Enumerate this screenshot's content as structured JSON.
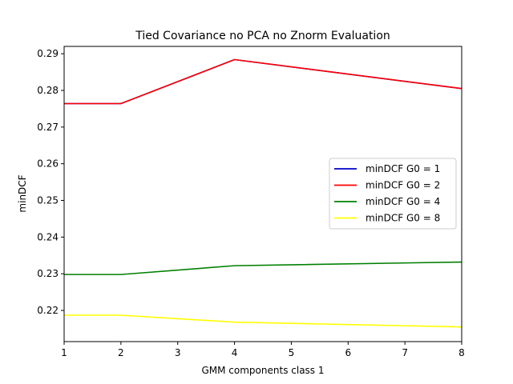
{
  "chart_data": {
    "type": "line",
    "title": "Tied Covariance no PCA no Znorm Evaluation",
    "xlabel": "GMM components class 1",
    "ylabel": "minDCF",
    "x": [
      1,
      2,
      4,
      8
    ],
    "xlim": [
      1,
      8
    ],
    "ylim": [
      0.2115,
      0.292
    ],
    "xticks": [
      "1",
      "2",
      "3",
      "4",
      "5",
      "6",
      "7",
      "8"
    ],
    "yticks": [
      "0.22",
      "0.23",
      "0.24",
      "0.25",
      "0.26",
      "0.27",
      "0.28",
      "0.29"
    ],
    "grid": false,
    "legend_position": "center-right",
    "series": [
      {
        "name": "minDCF G0 = 1",
        "color": "#0000cc",
        "values": [
          0.2764,
          0.2764,
          0.2884,
          0.2805
        ]
      },
      {
        "name": "minDCF G0 = 2",
        "color": "#ff0000",
        "values": [
          0.2764,
          0.2764,
          0.2884,
          0.2805
        ]
      },
      {
        "name": "minDCF G0 = 4",
        "color": "#008000",
        "values": [
          0.2298,
          0.2298,
          0.2322,
          0.2332
        ]
      },
      {
        "name": "minDCF G0 = 8",
        "color": "#ffff00",
        "values": [
          0.2187,
          0.2187,
          0.2168,
          0.2155
        ]
      }
    ]
  }
}
